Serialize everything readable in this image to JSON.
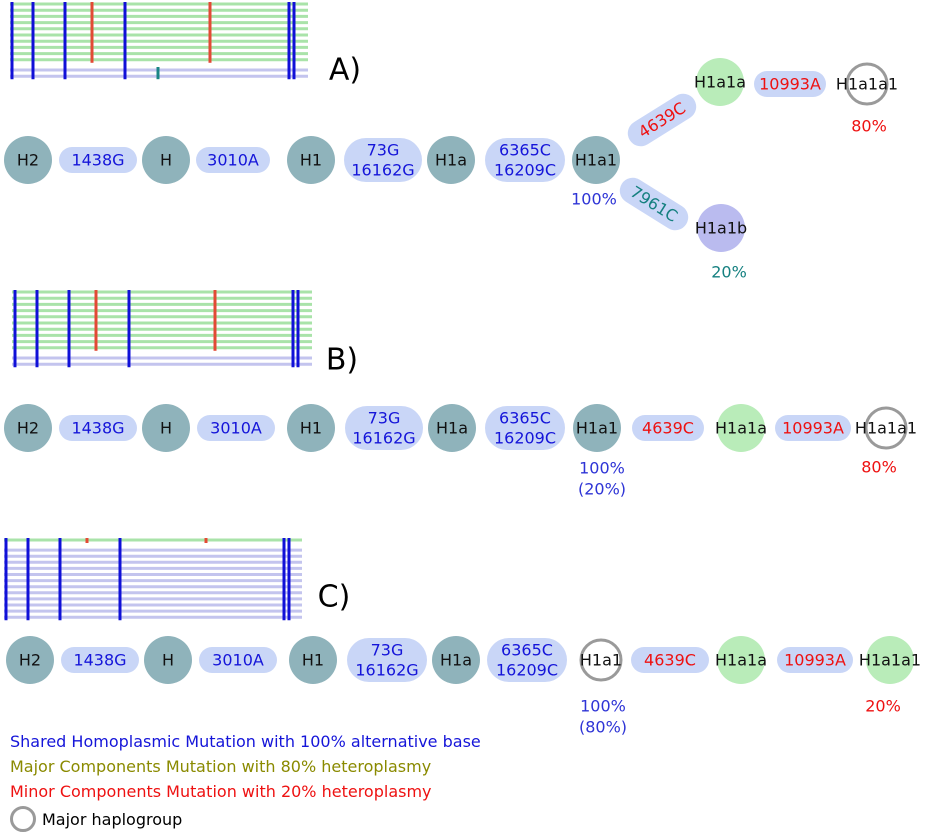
{
  "colors": {
    "node_gray": "#8fb3bb",
    "node_green": "#b9ecb9",
    "node_lavender": "#babbef",
    "pill": "#c9d6f7",
    "text_blue": "#1515d9",
    "text_red": "#ee1111",
    "text_teal": "#158080",
    "text_olive": "#8a8a00",
    "pct_blue": "#2e34d6",
    "line_green": "#a9e3a9",
    "line_lavender": "#c3c4ee",
    "tick_blue": "#1010d8",
    "tick_red": "#e24a35",
    "tick_teal": "#1a8585",
    "major_ring": "#9a9a9a"
  },
  "panels": [
    {
      "id": "A",
      "label": "A)",
      "nodes": [
        {
          "label": "H2",
          "fill": "gray"
        },
        {
          "label": "H",
          "fill": "gray"
        },
        {
          "label": "H1",
          "fill": "gray"
        },
        {
          "label": "H1a",
          "fill": "gray"
        },
        {
          "label": "H1a1",
          "fill": "gray",
          "pct": [
            "100%"
          ],
          "pct_color": "pct_blue"
        },
        {
          "label": "H1a1a",
          "fill": "green"
        },
        {
          "label": "H1a1a1",
          "fill": "ring",
          "pct": [
            "80%"
          ],
          "pct_color": "text_red"
        },
        {
          "label": "H1a1b",
          "fill": "lavender",
          "pct": [
            "20%"
          ],
          "pct_color": "text_teal"
        }
      ],
      "mutations": [
        {
          "lines": [
            "1438G"
          ],
          "color": "text_blue"
        },
        {
          "lines": [
            "3010A"
          ],
          "color": "text_blue"
        },
        {
          "lines": [
            "73G",
            "16162G"
          ],
          "color": "text_blue"
        },
        {
          "lines": [
            "6365C",
            "16209C"
          ],
          "color": "text_blue"
        },
        {
          "lines": [
            "4639C"
          ],
          "color": "text_red"
        },
        {
          "lines": [
            "10993A"
          ],
          "color": "text_red"
        },
        {
          "lines": [
            "7961C"
          ],
          "color": "text_teal"
        }
      ]
    },
    {
      "id": "B",
      "label": "B)",
      "nodes": [
        {
          "label": "H2",
          "fill": "gray"
        },
        {
          "label": "H",
          "fill": "gray"
        },
        {
          "label": "H1",
          "fill": "gray"
        },
        {
          "label": "H1a",
          "fill": "gray"
        },
        {
          "label": "H1a1",
          "fill": "gray",
          "pct": [
            "100%",
            "(20%)"
          ],
          "pct_color": "pct_blue"
        },
        {
          "label": "H1a1a",
          "fill": "green"
        },
        {
          "label": "H1a1a1",
          "fill": "ring",
          "pct": [
            "80%"
          ],
          "pct_color": "text_red"
        }
      ],
      "mutations": [
        {
          "lines": [
            "1438G"
          ],
          "color": "text_blue"
        },
        {
          "lines": [
            "3010A"
          ],
          "color": "text_blue"
        },
        {
          "lines": [
            "73G",
            "16162G"
          ],
          "color": "text_blue"
        },
        {
          "lines": [
            "6365C",
            "16209C"
          ],
          "color": "text_blue"
        },
        {
          "lines": [
            "4639C"
          ],
          "color": "text_red"
        },
        {
          "lines": [
            "10993A"
          ],
          "color": "text_red"
        }
      ]
    },
    {
      "id": "C",
      "label": "C)",
      "nodes": [
        {
          "label": "H2",
          "fill": "gray"
        },
        {
          "label": "H",
          "fill": "gray"
        },
        {
          "label": "H1",
          "fill": "gray"
        },
        {
          "label": "H1a",
          "fill": "gray"
        },
        {
          "label": "H1a1",
          "fill": "ring",
          "pct": [
            "100%",
            "(80%)"
          ],
          "pct_color": "pct_blue"
        },
        {
          "label": "H1a1a",
          "fill": "green"
        },
        {
          "label": "H1a1a1",
          "fill": "green",
          "pct": [
            "20%"
          ],
          "pct_color": "text_red"
        }
      ],
      "mutations": [
        {
          "lines": [
            "1438G"
          ],
          "color": "text_blue"
        },
        {
          "lines": [
            "3010A"
          ],
          "color": "text_blue"
        },
        {
          "lines": [
            "73G",
            "16162G"
          ],
          "color": "text_blue"
        },
        {
          "lines": [
            "6365C",
            "16209C"
          ],
          "color": "text_blue"
        },
        {
          "lines": [
            "4639C"
          ],
          "color": "text_red"
        },
        {
          "lines": [
            "10993A"
          ],
          "color": "text_red"
        }
      ]
    }
  ],
  "legend": {
    "shared": "Shared Homoplasmic Mutation with 100% alternative base",
    "major": "Major Components Mutation with 80% heteroplasmy",
    "minor": "Minor Components Mutation with 20% heteroplasmy",
    "haplogroup": "Major haplogroup"
  }
}
